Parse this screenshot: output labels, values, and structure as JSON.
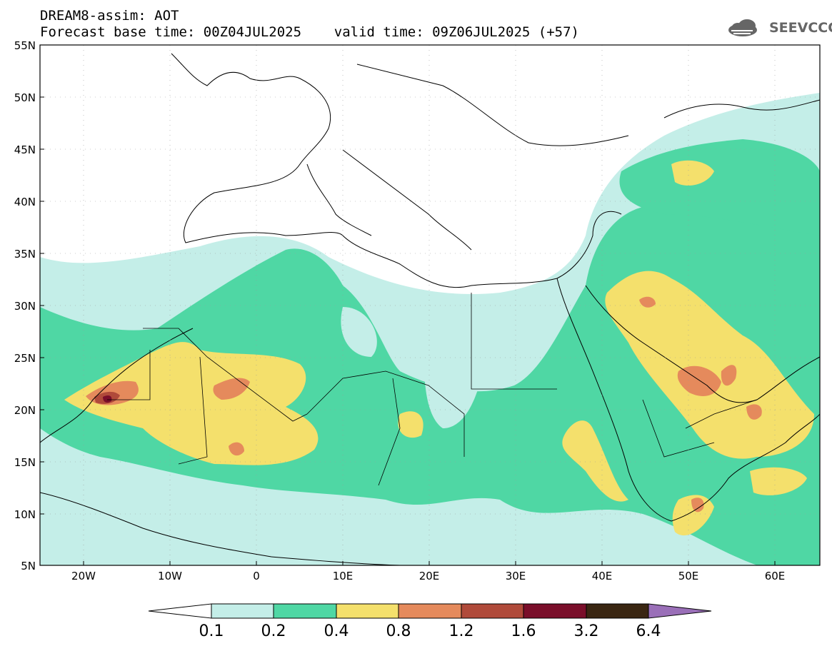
{
  "header": {
    "line1": "DREAM8-assim: AOT",
    "line2": "Forecast base time: 00Z04JUL2025    valid time: 09Z06JUL2025 (+57)"
  },
  "logo": {
    "text": "SEEVCCC",
    "icon": "cloud-icon",
    "color": "#666666"
  },
  "map": {
    "lon_range": [
      -25,
      65
    ],
    "lat_range": [
      5,
      55
    ],
    "lat_labels": [
      "55N",
      "50N",
      "45N",
      "40N",
      "35N",
      "30N",
      "25N",
      "20N",
      "15N",
      "10N",
      "5N"
    ],
    "lon_labels": [
      "20W",
      "10W",
      "0",
      "10E",
      "20E",
      "30E",
      "40E",
      "50E",
      "60E"
    ]
  },
  "colorbar": {
    "levels": [
      "0.1",
      "0.2",
      "0.4",
      "0.8",
      "1.2",
      "1.6",
      "3.2",
      "6.4"
    ],
    "colors": [
      "#ffffff",
      "#c4eee8",
      "#4fd7a4",
      "#f4e06c",
      "#e58a5c",
      "#b04a3a",
      "#7a0e2a",
      "#3a2612",
      "#9a6fb8"
    ]
  }
}
